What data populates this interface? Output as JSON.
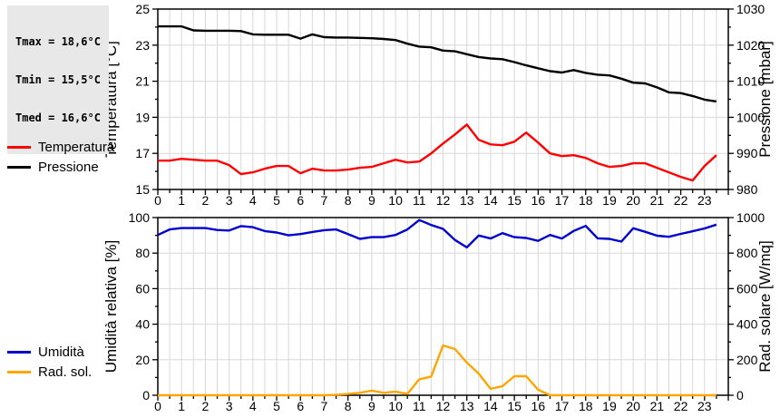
{
  "stats_box": {
    "lines": [
      "Tmax = 18,6°C",
      "Tmin = 15,5°C",
      "Tmed = 16,6°C"
    ]
  },
  "legend_top": [
    {
      "label": "Temperatura",
      "color": "#ff0000"
    },
    {
      "label": "Pressione",
      "color": "#000000"
    }
  ],
  "legend_bottom": [
    {
      "label": "Umidità",
      "color": "#0000cc"
    },
    {
      "label": "Rad. sol.",
      "color": "#ffa500"
    }
  ],
  "colors": {
    "temperature": "#ff0000",
    "pressure": "#000000",
    "humidity": "#0000cc",
    "solar_radiation": "#ffa500",
    "grid": "#d8d8d8",
    "axis": "#000000",
    "stats_background": "#e8e8e8"
  },
  "chart_data": [
    {
      "type": "line",
      "name": "temperature-pressure",
      "grid": true,
      "x_axis": {
        "min": 0,
        "max": 24,
        "minor_step": 0.5,
        "labels": [
          "0",
          "1",
          "2",
          "3",
          "4",
          "5",
          "6",
          "7",
          "8",
          "9",
          "10",
          "11",
          "12",
          "13",
          "14",
          "15",
          "16",
          "17",
          "18",
          "19",
          "20",
          "21",
          "22",
          "23"
        ]
      },
      "left_axis": {
        "label": "Temperatura [°C]",
        "min": 15,
        "max": 25,
        "ticks": [
          15,
          17,
          19,
          21,
          23,
          25
        ],
        "minor_step": 1
      },
      "right_axis": {
        "label": "Pressione [mbar]",
        "min": 980,
        "max": 1030,
        "ticks": [
          980,
          990,
          1000,
          1010,
          1020,
          1030
        ],
        "minor_step": 5
      },
      "x": [
        0,
        0.5,
        1,
        1.5,
        2,
        2.5,
        3,
        3.5,
        4,
        4.5,
        5,
        5.5,
        6,
        6.5,
        7,
        7.5,
        8,
        8.5,
        9,
        9.5,
        10,
        10.5,
        11,
        11.5,
        12,
        12.5,
        13,
        13.5,
        14,
        14.5,
        15,
        15.5,
        16,
        16.5,
        17,
        17.5,
        18,
        18.5,
        19,
        19.5,
        20,
        20.5,
        21,
        21.5,
        22,
        22.5,
        23,
        23.5
      ],
      "series": [
        {
          "name": "Temperatura",
          "axis": "left",
          "color": "#ff0000",
          "values": [
            16.6,
            16.6,
            16.7,
            16.65,
            16.6,
            16.6,
            16.35,
            15.85,
            15.95,
            16.15,
            16.3,
            16.3,
            15.9,
            16.15,
            16.05,
            16.05,
            16.1,
            16.2,
            16.25,
            16.45,
            16.65,
            16.5,
            16.55,
            17.0,
            17.55,
            18.05,
            18.6,
            17.75,
            17.5,
            17.45,
            17.65,
            18.15,
            17.6,
            17.0,
            16.85,
            16.9,
            16.75,
            16.45,
            16.25,
            16.3,
            16.45,
            16.45,
            16.2,
            15.95,
            15.7,
            15.5,
            16.3,
            16.9
          ]
        },
        {
          "name": "Pressione",
          "axis": "right",
          "color": "#000000",
          "values": [
            1025.2,
            1025.2,
            1025.2,
            1024.1,
            1024.0,
            1024.0,
            1024.0,
            1023.9,
            1023.0,
            1022.9,
            1022.9,
            1022.9,
            1021.8,
            1023.0,
            1022.2,
            1022.1,
            1022.1,
            1022.0,
            1021.9,
            1021.7,
            1021.4,
            1020.4,
            1019.6,
            1019.4,
            1018.5,
            1018.3,
            1017.5,
            1016.7,
            1016.3,
            1016.1,
            1015.3,
            1014.4,
            1013.6,
            1012.8,
            1012.4,
            1013.1,
            1012.3,
            1011.8,
            1011.6,
            1010.7,
            1009.6,
            1009.4,
            1008.3,
            1006.9,
            1006.7,
            1005.9,
            1004.9,
            1004.4
          ]
        }
      ]
    },
    {
      "type": "line",
      "name": "humidity-radiation",
      "grid": true,
      "x_axis": {
        "min": 0,
        "max": 24,
        "minor_step": 0.5,
        "labels": [
          "0",
          "1",
          "2",
          "3",
          "4",
          "5",
          "6",
          "7",
          "8",
          "9",
          "10",
          "11",
          "12",
          "13",
          "14",
          "15",
          "16",
          "17",
          "18",
          "19",
          "20",
          "21",
          "22",
          "23"
        ]
      },
      "left_axis": {
        "label": "Umidità relativa [%]",
        "min": 0,
        "max": 100,
        "ticks": [
          0,
          20,
          40,
          60,
          80,
          100
        ],
        "minor_step": 10
      },
      "right_axis": {
        "label": "Rad. solare [W/mq]",
        "min": 0,
        "max": 1000,
        "ticks": [
          0,
          200,
          400,
          600,
          800,
          1000
        ],
        "minor_step": 100
      },
      "x": [
        0,
        0.5,
        1,
        1.5,
        2,
        2.5,
        3,
        3.5,
        4,
        4.5,
        5,
        5.5,
        6,
        6.5,
        7,
        7.5,
        8,
        8.5,
        9,
        9.5,
        10,
        10.5,
        11,
        11.5,
        12,
        12.5,
        13,
        13.5,
        14,
        14.5,
        15,
        15.5,
        16,
        16.5,
        17,
        17.5,
        18,
        18.5,
        19,
        19.5,
        20,
        20.5,
        21,
        21.5,
        22,
        22.5,
        23,
        23.5
      ],
      "series": [
        {
          "name": "Umidità",
          "axis": "left",
          "color": "#0000cc",
          "values": [
            90.2,
            93.3,
            94.1,
            94.1,
            94.1,
            93.0,
            92.7,
            95.2,
            94.6,
            92.4,
            91.6,
            90.0,
            90.7,
            91.9,
            92.9,
            93.3,
            90.7,
            88.0,
            89.0,
            89.0,
            90.2,
            93.3,
            98.6,
            95.8,
            93.6,
            87.4,
            83.2,
            89.9,
            88.2,
            91.2,
            89.0,
            88.5,
            86.9,
            90.2,
            88.2,
            92.5,
            95.3,
            88.3,
            88.0,
            86.5,
            94.0,
            92.0,
            89.8,
            89.2,
            90.8,
            92.3,
            93.9,
            96.0
          ]
        },
        {
          "name": "Rad. sol.",
          "axis": "right",
          "color": "#ffa500",
          "values": [
            0,
            0,
            0,
            0,
            0,
            0,
            0,
            0,
            0,
            0,
            0,
            0,
            0,
            0,
            0,
            2,
            7,
            14,
            26,
            14,
            20,
            8,
            90,
            105,
            280,
            260,
            184,
            122,
            36,
            51,
            107,
            107,
            31,
            0,
            0,
            0,
            0,
            0,
            0,
            0,
            0,
            0,
            0,
            0,
            0,
            0,
            0,
            0
          ]
        }
      ]
    }
  ]
}
